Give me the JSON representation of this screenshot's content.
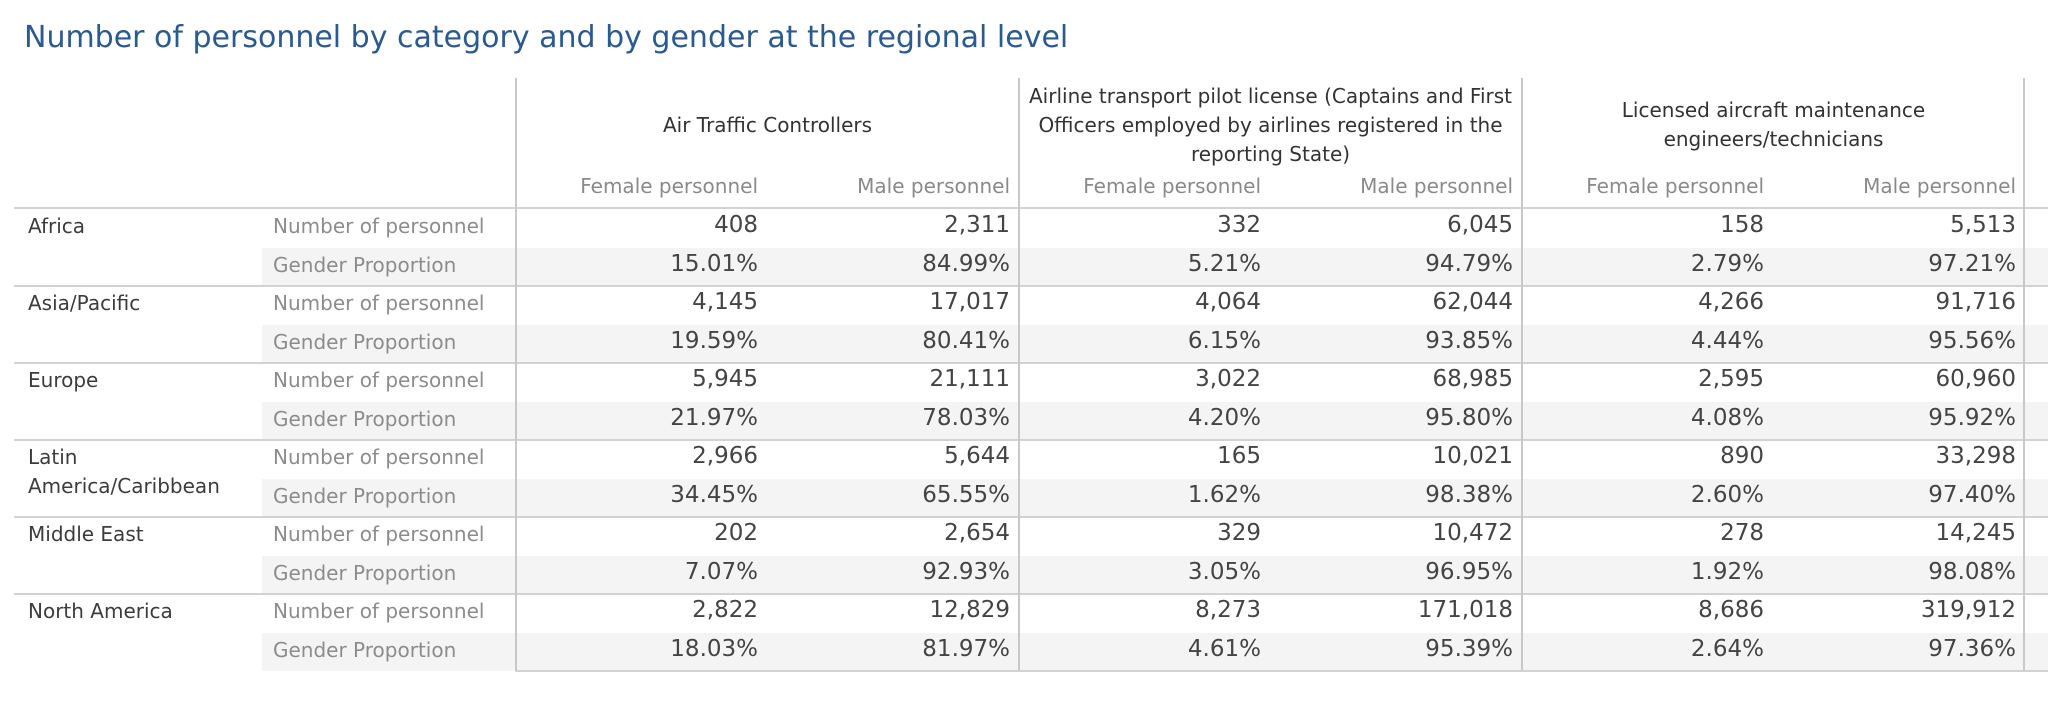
{
  "title": "Number of personnel by category and by gender at the regional level",
  "column_groups": [
    {
      "label": "Air Traffic Controllers"
    },
    {
      "label": "Airline transport pilot license (Captains and First Officers employed by airlines registered in the reporting State)"
    },
    {
      "label": "Licensed aircraft maintenance engineers/technicians"
    }
  ],
  "sub_columns": [
    "Female personnel",
    "Male personnel"
  ],
  "metric_labels": [
    "Number of personnel",
    "Gender Proportion"
  ],
  "regions": [
    {
      "name": "Africa",
      "rows": [
        [
          "408",
          "2,311",
          "332",
          "6,045",
          "158",
          "5,513"
        ],
        [
          "15.01%",
          "84.99%",
          "5.21%",
          "94.79%",
          "2.79%",
          "97.21%"
        ]
      ]
    },
    {
      "name": "Asia/Pacific",
      "rows": [
        [
          "4,145",
          "17,017",
          "4,064",
          "62,044",
          "4,266",
          "91,716"
        ],
        [
          "19.59%",
          "80.41%",
          "6.15%",
          "93.85%",
          "4.44%",
          "95.56%"
        ]
      ]
    },
    {
      "name": "Europe",
      "rows": [
        [
          "5,945",
          "21,111",
          "3,022",
          "68,985",
          "2,595",
          "60,960"
        ],
        [
          "21.97%",
          "78.03%",
          "4.20%",
          "95.80%",
          "4.08%",
          "95.92%"
        ]
      ]
    },
    {
      "name": "Latin America/Caribbean",
      "rows": [
        [
          "2,966",
          "5,644",
          "165",
          "10,021",
          "890",
          "33,298"
        ],
        [
          "34.45%",
          "65.55%",
          "1.62%",
          "98.38%",
          "2.60%",
          "97.40%"
        ]
      ]
    },
    {
      "name": "Middle East",
      "rows": [
        [
          "202",
          "2,654",
          "329",
          "10,472",
          "278",
          "14,245"
        ],
        [
          "7.07%",
          "92.93%",
          "3.05%",
          "96.95%",
          "1.92%",
          "98.08%"
        ]
      ]
    },
    {
      "name": "North America",
      "rows": [
        [
          "2,822",
          "12,829",
          "8,273",
          "171,018",
          "8,686",
          "319,912"
        ],
        [
          "18.03%",
          "81.97%",
          "4.61%",
          "95.39%",
          "2.64%",
          "97.36%"
        ]
      ]
    }
  ]
}
